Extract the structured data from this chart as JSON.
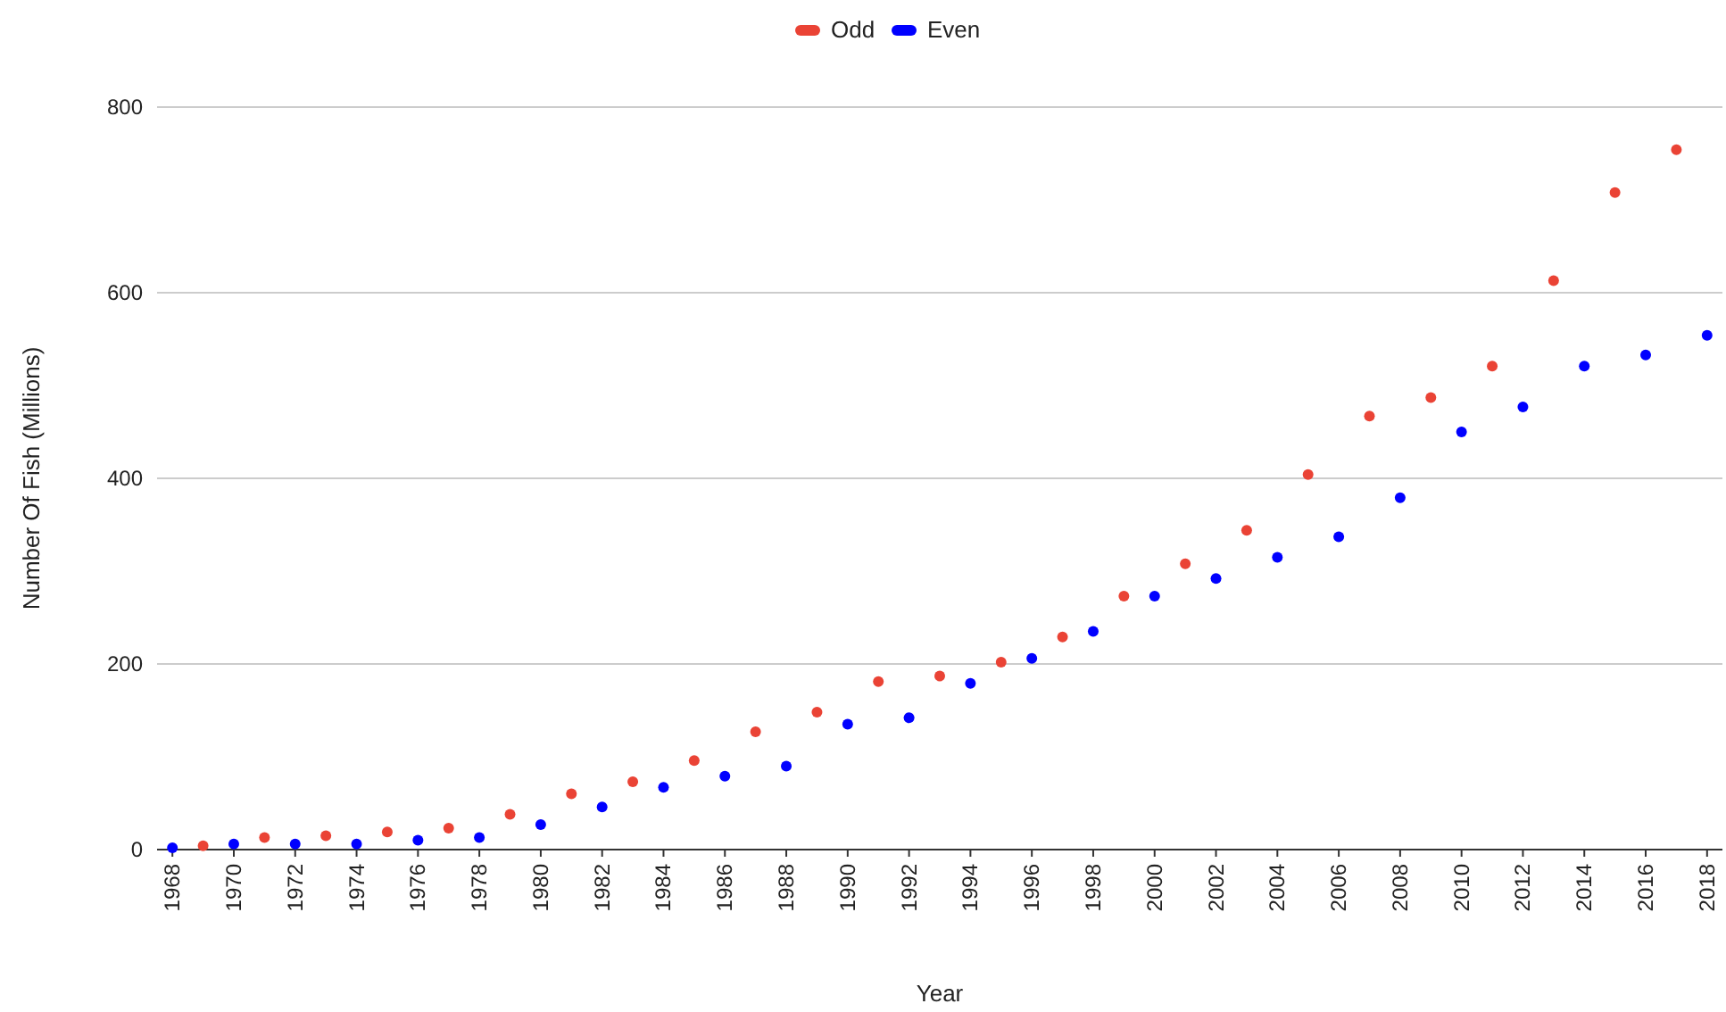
{
  "chart_data": {
    "type": "scatter",
    "xlabel": "Year",
    "ylabel": "Number Of Fish (Millions)",
    "xlim": [
      1967.5,
      2018.5
    ],
    "xticks": [
      1968,
      1970,
      1972,
      1974,
      1976,
      1978,
      1980,
      1982,
      1984,
      1986,
      1988,
      1990,
      1992,
      1994,
      1996,
      1998,
      2000,
      2002,
      2004,
      2006,
      2008,
      2010,
      2012,
      2014,
      2016,
      2018
    ],
    "ylim": [
      0,
      800
    ],
    "yticks": [
      0,
      200,
      400,
      600,
      800
    ],
    "grid": "y",
    "legend": "top",
    "marker": "circle",
    "series": [
      {
        "name": "Odd",
        "color": "#ea4335",
        "x": [
          1969,
          1971,
          1973,
          1975,
          1977,
          1979,
          1981,
          1983,
          1985,
          1987,
          1989,
          1991,
          1993,
          1995,
          1997,
          1999,
          2001,
          2003,
          2005,
          2007,
          2009,
          2011,
          2013,
          2015,
          2017
        ],
        "values": [
          4,
          13,
          15,
          19,
          23,
          38,
          60,
          73,
          96,
          127,
          148,
          181,
          187,
          202,
          229,
          273,
          308,
          344,
          404,
          467,
          487,
          521,
          613,
          708,
          754
        ]
      },
      {
        "name": "Even",
        "color": "#0000ff",
        "x": [
          1968,
          1970,
          1972,
          1974,
          1976,
          1978,
          1980,
          1982,
          1984,
          1986,
          1988,
          1990,
          1992,
          1994,
          1996,
          1998,
          2000,
          2002,
          2004,
          2006,
          2008,
          2010,
          2012,
          2014,
          2016,
          2018
        ],
        "values": [
          2,
          6,
          6,
          6,
          10,
          13,
          27,
          46,
          67,
          79,
          90,
          135,
          142,
          179,
          206,
          235,
          273,
          292,
          315,
          337,
          379,
          450,
          477,
          521,
          533,
          554
        ]
      }
    ]
  }
}
